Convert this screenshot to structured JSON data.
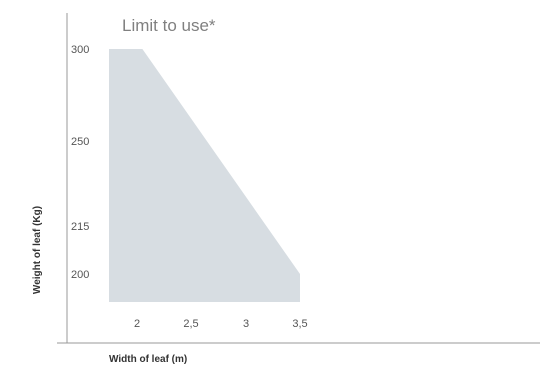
{
  "chart_data": {
    "type": "area",
    "title": "Limit to use*",
    "xlabel": "Width of leaf (m)",
    "ylabel": "Weight of leaf (Kg)",
    "x_ticks": [
      {
        "value": 2,
        "label": "2"
      },
      {
        "value": 2.5,
        "label": "2,5"
      },
      {
        "value": 3,
        "label": "3"
      },
      {
        "value": 3.5,
        "label": "3,5"
      }
    ],
    "y_ticks": [
      {
        "value": 200,
        "label": "200"
      },
      {
        "value": 215,
        "label": "215"
      },
      {
        "value": 250,
        "label": "250"
      },
      {
        "value": 300,
        "label": "300"
      }
    ],
    "series": [
      {
        "points": [
          {
            "x": 1.7,
            "y": 300
          },
          {
            "x": 2.05,
            "y": 300
          },
          {
            "x": 3.5,
            "y": 200
          },
          {
            "x": 3.5,
            "y": 190
          },
          {
            "x": 1.7,
            "y": 190
          }
        ]
      }
    ],
    "fill_color": "#d7dde2",
    "axis_color": "#999999",
    "grid": false
  }
}
